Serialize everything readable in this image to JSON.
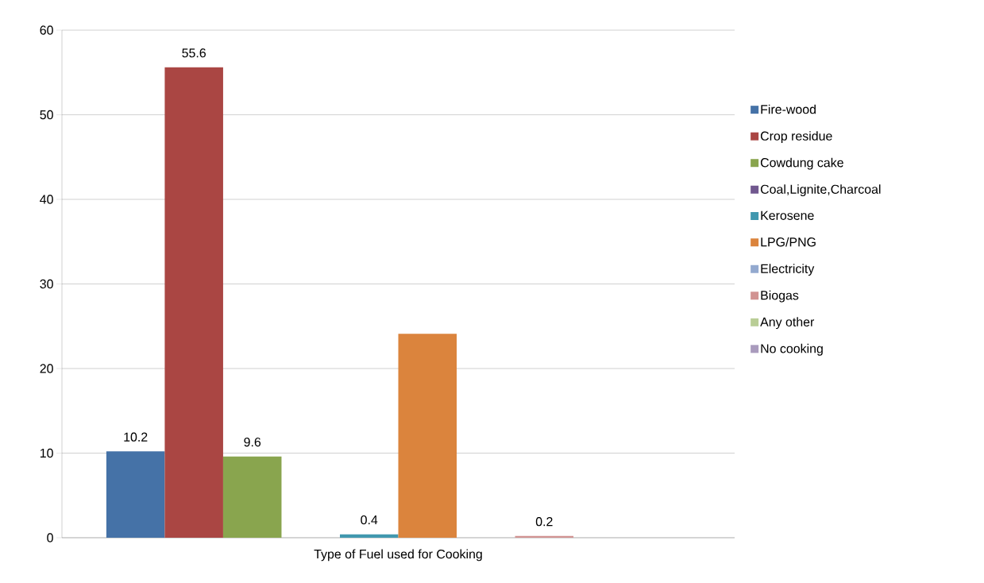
{
  "chart_data": {
    "type": "bar",
    "categories": [
      "Type of Fuel used for Cooking"
    ],
    "series": [
      {
        "name": "Fire-wood",
        "color": "#4572a7",
        "values": [
          10.2
        ],
        "value_labels": [
          "10.2"
        ]
      },
      {
        "name": "Crop residue",
        "color": "#aa4643",
        "values": [
          55.6
        ],
        "value_labels": [
          "55.6"
        ]
      },
      {
        "name": "Cowdung cake",
        "color": "#89a54e",
        "values": [
          9.6
        ],
        "value_labels": [
          "9.6"
        ]
      },
      {
        "name": "Coal,Lignite,Charcoal",
        "color": "#71588f",
        "values": [
          0
        ],
        "value_labels": [
          null
        ]
      },
      {
        "name": "Kerosene",
        "color": "#4198af",
        "values": [
          0.4
        ],
        "value_labels": [
          "0.4"
        ]
      },
      {
        "name": "LPG/PNG",
        "color": "#db843d",
        "values": [
          24.1
        ],
        "value_labels": [
          null
        ]
      },
      {
        "name": "Electricity",
        "color": "#93a9cf",
        "values": [
          0
        ],
        "value_labels": [
          null
        ]
      },
      {
        "name": "Biogas",
        "color": "#d19392",
        "values": [
          0.2
        ],
        "value_labels": [
          "0.2"
        ]
      },
      {
        "name": "Any other",
        "color": "#b9cd96",
        "values": [
          0
        ],
        "value_labels": [
          null
        ]
      },
      {
        "name": "No cooking",
        "color": "#a99bbd",
        "values": [
          0
        ],
        "value_labels": [
          null
        ]
      }
    ],
    "ylim": [
      0,
      60
    ],
    "yticks": [
      0,
      10,
      20,
      30,
      40,
      50,
      60
    ],
    "grid": "y",
    "legend": "right"
  }
}
